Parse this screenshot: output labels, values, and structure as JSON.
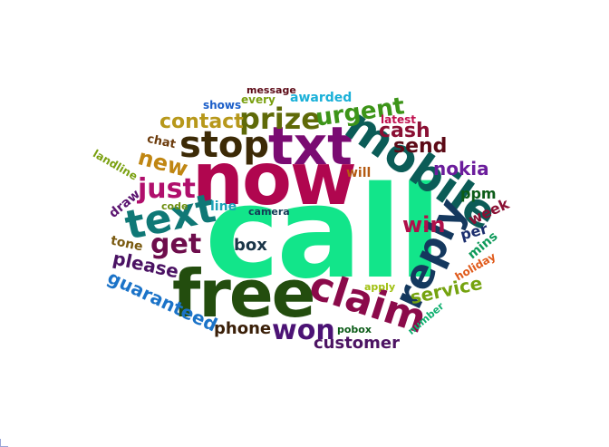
{
  "words": [
    {
      "text": "call",
      "color": "#12e58a"
    },
    {
      "text": "free",
      "color": "#234d0e"
    },
    {
      "text": "now",
      "color": "#b0064f"
    },
    {
      "text": "txt",
      "color": "#7a0b72"
    },
    {
      "text": "mobile",
      "color": "#0b5c57"
    },
    {
      "text": "text",
      "color": "#0f7876"
    },
    {
      "text": "stop",
      "color": "#3c2a06"
    },
    {
      "text": "claim",
      "color": "#8b0a4a"
    },
    {
      "text": "reply",
      "color": "#14385e"
    },
    {
      "text": "prize",
      "color": "#5f6a08"
    },
    {
      "text": "just",
      "color": "#b00f6c"
    },
    {
      "text": "get",
      "color": "#6e0d4c"
    },
    {
      "text": "won",
      "color": "#4c1375"
    },
    {
      "text": "urgent",
      "color": "#3c9418"
    },
    {
      "text": "contact",
      "color": "#b7981b"
    },
    {
      "text": "cash",
      "color": "#8a0f33"
    },
    {
      "text": "send",
      "color": "#5c0a16"
    },
    {
      "text": "new",
      "color": "#c08612"
    },
    {
      "text": "nokia",
      "color": "#6b1d9c"
    },
    {
      "text": "win",
      "color": "#b0104a"
    },
    {
      "text": "please",
      "color": "#4a1263"
    },
    {
      "text": "guaranteed",
      "color": "#1b73c8"
    },
    {
      "text": "service",
      "color": "#75a30f"
    },
    {
      "text": "customer",
      "color": "#4d1463"
    },
    {
      "text": "phone",
      "color": "#3a1f08"
    },
    {
      "text": "box",
      "color": "#1a3548"
    },
    {
      "text": "ppm",
      "color": "#0c5c18"
    },
    {
      "text": "week",
      "color": "#8a0f33"
    },
    {
      "text": "per",
      "color": "#1b2e6e"
    },
    {
      "text": "mins",
      "color": "#0e9a5a"
    },
    {
      "text": "tone",
      "color": "#7a5a10"
    },
    {
      "text": "draw",
      "color": "#5b1470"
    },
    {
      "text": "line",
      "color": "#1aa3b8"
    },
    {
      "text": "code",
      "color": "#6d8f10"
    },
    {
      "text": "camera",
      "color": "#123a55"
    },
    {
      "text": "will",
      "color": "#b45a12"
    },
    {
      "text": "chat",
      "color": "#6b3a0a"
    },
    {
      "text": "landline",
      "color": "#7aa010"
    },
    {
      "text": "latest",
      "color": "#c0104e"
    },
    {
      "text": "awarded",
      "color": "#1ab0d8"
    },
    {
      "text": "every",
      "color": "#7aa010"
    },
    {
      "text": "shows",
      "color": "#1b5ec8"
    },
    {
      "text": "message",
      "color": "#5c0a16"
    },
    {
      "text": "apply",
      "color": "#a0c010"
    },
    {
      "text": "pobox",
      "color": "#0c5c18"
    },
    {
      "text": "number",
      "color": "#10b070"
    },
    {
      "text": "holiday",
      "color": "#e05a1a"
    }
  ]
}
